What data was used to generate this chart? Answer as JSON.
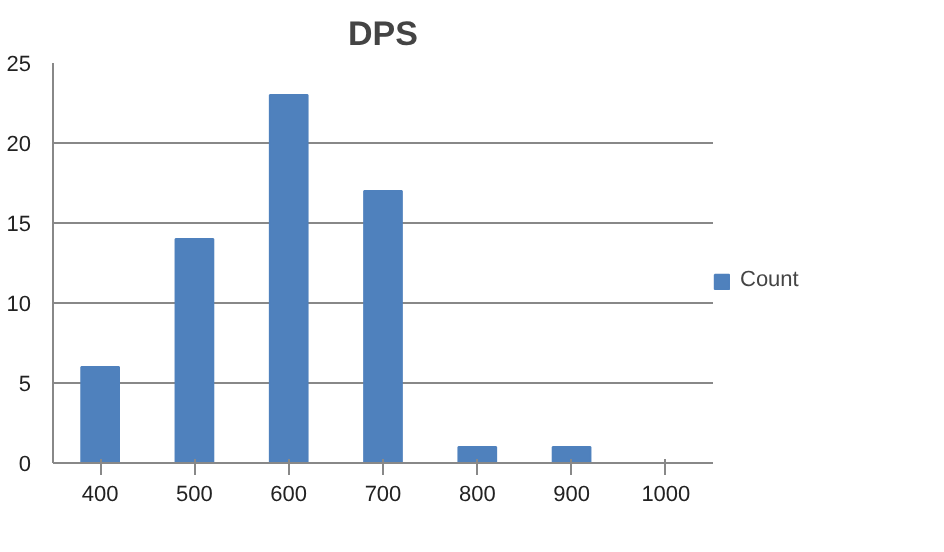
{
  "chart_data": {
    "type": "bar",
    "title": "DPS",
    "categories": [
      "400",
      "500",
      "600",
      "700",
      "800",
      "900",
      "1000"
    ],
    "series": [
      {
        "name": "Count",
        "color": "#4f81bd",
        "values": [
          6,
          14,
          23,
          17,
          1,
          1,
          0
        ]
      }
    ],
    "ylim": [
      0,
      25
    ],
    "yticks": [
      0,
      5,
      10,
      15,
      20,
      25
    ],
    "grid": "y",
    "legend": "right"
  }
}
